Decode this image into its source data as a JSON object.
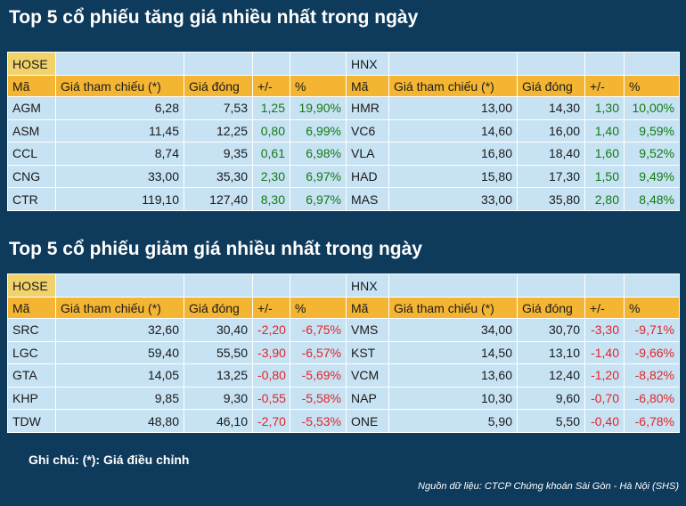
{
  "top_gainers": {
    "title": "Top 5 cổ phiếu tăng giá nhiều nhất trong ngày",
    "hose": {
      "exchange": "HOSE",
      "headers": [
        "Mã",
        "Giá tham chiếu (*)",
        "Giá đóng",
        "+/-",
        "%"
      ],
      "rows": [
        [
          "AGM",
          "6,28",
          "7,53",
          "1,25",
          "19,90%"
        ],
        [
          "ASM",
          "11,45",
          "12,25",
          "0,80",
          "6,99%"
        ],
        [
          "CCL",
          "8,74",
          "9,35",
          "0,61",
          "6,98%"
        ],
        [
          "CNG",
          "33,00",
          "35,30",
          "2,30",
          "6,97%"
        ],
        [
          "CTR",
          "119,10",
          "127,40",
          "8,30",
          "6,97%"
        ]
      ]
    },
    "hnx": {
      "exchange": "HNX",
      "headers": [
        "Mã",
        "Giá tham chiếu (*)",
        "Giá đóng",
        "+/-",
        "%"
      ],
      "rows": [
        [
          "HMR",
          "13,00",
          "14,30",
          "1,30",
          "10,00%"
        ],
        [
          "VC6",
          "14,60",
          "16,00",
          "1,40",
          "9,59%"
        ],
        [
          "VLA",
          "16,80",
          "18,40",
          "1,60",
          "9,52%"
        ],
        [
          "HAD",
          "15,80",
          "17,30",
          "1,50",
          "9,49%"
        ],
        [
          "MAS",
          "33,00",
          "35,80",
          "2,80",
          "8,48%"
        ]
      ]
    }
  },
  "top_losers": {
    "title": "Top 5 cổ phiếu giảm giá nhiều nhất trong ngày",
    "hose": {
      "exchange": "HOSE",
      "headers": [
        "Mã",
        "Giá tham chiếu (*)",
        "Giá đóng",
        "+/-",
        "%"
      ],
      "rows": [
        [
          "SRC",
          "32,60",
          "30,40",
          "-2,20",
          "-6,75%"
        ],
        [
          "LGC",
          "59,40",
          "55,50",
          "-3,90",
          "-6,57%"
        ],
        [
          "GTA",
          "14,05",
          "13,25",
          "-0,80",
          "-5,69%"
        ],
        [
          "KHP",
          "9,85",
          "9,30",
          "-0,55",
          "-5,58%"
        ],
        [
          "TDW",
          "48,80",
          "46,10",
          "-2,70",
          "-5,53%"
        ]
      ]
    },
    "hnx": {
      "exchange": "HNX",
      "headers": [
        "Mã",
        "Giá tham chiếu (*)",
        "Giá đóng",
        "+/-",
        "%"
      ],
      "rows": [
        [
          "VMS",
          "34,00",
          "30,70",
          "-3,30",
          "-9,71%"
        ],
        [
          "KST",
          "14,50",
          "13,10",
          "-1,40",
          "-9,66%"
        ],
        [
          "VCM",
          "13,60",
          "12,40",
          "-1,20",
          "-8,82%"
        ],
        [
          "NAP",
          "10,30",
          "9,60",
          "-0,70",
          "-6,80%"
        ],
        [
          "ONE",
          "5,90",
          "5,50",
          "-0,40",
          "-6,78%"
        ]
      ]
    }
  },
  "note": "Ghi chú: (*): Giá điều chỉnh",
  "source": "Nguồn dữ liệu: CTCP Chứng khoán Sài Gòn - Hà Nội (SHS)"
}
